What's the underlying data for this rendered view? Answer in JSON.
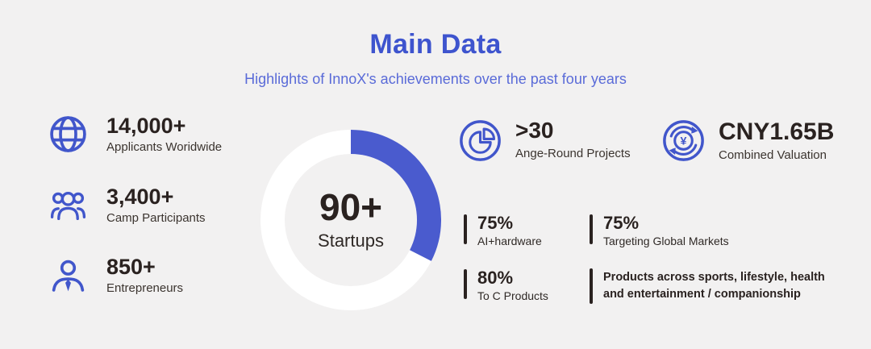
{
  "colors": {
    "background": "#F2F1F1",
    "accent_blue": "#3E54CE",
    "subtitle_blue": "#5A6BD8",
    "icon_blue": "#4156CB",
    "donut_blue": "#4A5BCE",
    "dark_text": "#2A2220",
    "ring_white": "#FFFFFF"
  },
  "header": {
    "title": "Main Data",
    "subtitle": "Highlights of InnoX's achievements over the past four years"
  },
  "left_stats": [
    {
      "icon": "globe-icon",
      "value": "14,000+",
      "label": "Applicants Woridwide"
    },
    {
      "icon": "camp-participants-icon",
      "value": "3,400+",
      "label": "Camp Participants"
    },
    {
      "icon": "entrepreneur-icon",
      "value": "850+",
      "label": "Entrepreneurs"
    }
  ],
  "chart_data": {
    "type": "pie",
    "style": "donut-progress",
    "center_value": "90+",
    "center_label": "Startups",
    "start_angle_deg": 0,
    "sweep_deg": 117,
    "series": [
      {
        "name": "highlighted",
        "percent": 32.5,
        "color": "#4A5BCE"
      },
      {
        "name": "remainder",
        "percent": 67.5,
        "color": "#FFFFFF"
      }
    ],
    "legend": "none",
    "annotation": "blue arc starts at 12 o'clock and sweeps clockwise ~117 degrees"
  },
  "right_stats": [
    {
      "icon": "pie-chart-icon",
      "value": ">30",
      "label": "Ange-Round Projects"
    },
    {
      "icon": "currency-exchange-icon",
      "value": "CNY1.65B",
      "label": "Combined Valuation"
    }
  ],
  "breakdown": [
    {
      "value": "75%",
      "label": "AI+hardware"
    },
    {
      "value": "75%",
      "label": "Targeting Global Markets"
    },
    {
      "value": "80%",
      "label": "To C Products"
    },
    {
      "value": "",
      "label_line1": "Products across sports, lifestyle, health",
      "label_line2": "and entertainment / companionship"
    }
  ],
  "icons": {
    "yen_glyph": "¥"
  }
}
